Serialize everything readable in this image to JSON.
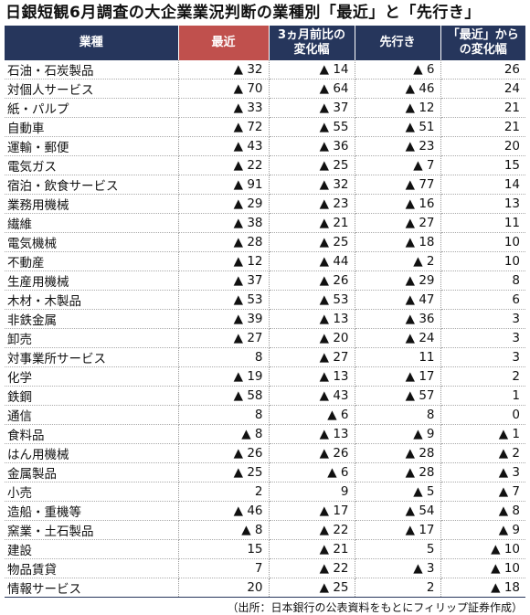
{
  "title": "日銀短観6月調査の大企業業況判断の業種別「最近」と「先行き」",
  "headers": [
    "業種",
    "最近",
    "3ヵ月前比の\n変化幅",
    "先行き",
    "「最近」から\nの変化幅"
  ],
  "rows": [
    [
      "石油・石炭製品",
      "▲ 32",
      "▲ 14",
      "▲ 6",
      "26"
    ],
    [
      "対個人サービス",
      "▲ 70",
      "▲ 64",
      "▲ 46",
      "24"
    ],
    [
      "紙・パルプ",
      "▲ 33",
      "▲ 37",
      "▲ 12",
      "21"
    ],
    [
      "自動車",
      "▲ 72",
      "▲ 55",
      "▲ 51",
      "21"
    ],
    [
      "運輸・郵便",
      "▲ 43",
      "▲ 36",
      "▲ 23",
      "20"
    ],
    [
      "電気ガス",
      "▲ 22",
      "▲ 25",
      "▲ 7",
      "15"
    ],
    [
      "宿泊・飲食サービス",
      "▲ 91",
      "▲ 32",
      "▲ 77",
      "14"
    ],
    [
      "業務用機械",
      "▲ 29",
      "▲ 23",
      "▲ 16",
      "13"
    ],
    [
      "繊維",
      "▲ 38",
      "▲ 21",
      "▲ 27",
      "11"
    ],
    [
      "電気機械",
      "▲ 28",
      "▲ 25",
      "▲ 18",
      "10"
    ],
    [
      "不動産",
      "▲ 12",
      "▲ 44",
      "▲ 2",
      "10"
    ],
    [
      "生産用機械",
      "▲ 37",
      "▲ 26",
      "▲ 29",
      "8"
    ],
    [
      "木材・木製品",
      "▲ 53",
      "▲ 53",
      "▲ 47",
      "6"
    ],
    [
      "非鉄金属",
      "▲ 39",
      "▲ 13",
      "▲ 36",
      "3"
    ],
    [
      "卸売",
      "▲ 27",
      "▲ 20",
      "▲ 24",
      "3"
    ],
    [
      "対事業所サービス",
      "8",
      "▲ 27",
      "11",
      "3"
    ],
    [
      "化学",
      "▲ 19",
      "▲ 13",
      "▲ 17",
      "2"
    ],
    [
      "鉄鋼",
      "▲ 58",
      "▲ 43",
      "▲ 57",
      "1"
    ],
    [
      "通信",
      "8",
      "▲ 6",
      "8",
      "0"
    ],
    [
      "食料品",
      "▲ 8",
      "▲ 13",
      "▲ 9",
      "▲ 1"
    ],
    [
      "はん用機械",
      "▲ 26",
      "▲ 26",
      "▲ 28",
      "▲ 2"
    ],
    [
      "金属製品",
      "▲ 25",
      "▲ 6",
      "▲ 28",
      "▲ 3"
    ],
    [
      "小売",
      "2",
      "9",
      "▲ 5",
      "▲ 7"
    ],
    [
      "造船・重機等",
      "▲ 46",
      "▲ 17",
      "▲ 54",
      "▲ 8"
    ],
    [
      "窯業・土石製品",
      "▲ 8",
      "▲ 22",
      "▲ 17",
      "▲ 9"
    ],
    [
      "建設",
      "15",
      "▲ 21",
      "5",
      "▲ 10"
    ],
    [
      "物品賃貸",
      "7",
      "▲ 22",
      "▲ 3",
      "▲ 10"
    ],
    [
      "情報サービス",
      "20",
      "▲ 25",
      "2",
      "▲ 18"
    ]
  ],
  "source": "（出所：日本銀行の公表資料をもとにフィリップ証券作成）"
}
